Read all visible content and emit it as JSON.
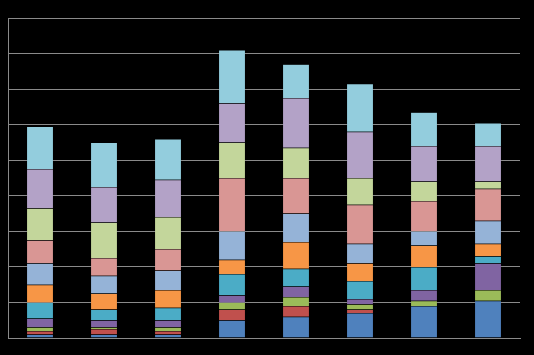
{
  "chart_data": {
    "type": "bar",
    "stacked": true,
    "grid": true,
    "tick_labels": false,
    "categories": [
      null,
      null,
      null,
      null,
      null,
      null,
      null,
      null
    ],
    "ylim": [
      0,
      90
    ],
    "yticks": [
      0,
      10,
      20,
      30,
      40,
      50,
      60,
      70,
      80,
      90
    ],
    "series": [
      {
        "color": "#4F81BD",
        "values": [
          1,
          1,
          1,
          5,
          6,
          7,
          9,
          10.5
        ]
      },
      {
        "color": "#C0504D",
        "values": [
          1,
          1.5,
          1,
          3,
          3,
          1,
          0,
          0
        ]
      },
      {
        "color": "#9BBB59",
        "values": [
          1,
          0.5,
          1,
          2,
          2.5,
          1.5,
          1.5,
          3
        ]
      },
      {
        "color": "#8064A2",
        "values": [
          2.5,
          2,
          2,
          2,
          3,
          1.5,
          3,
          7.5
        ]
      },
      {
        "color": "#4BACC6",
        "values": [
          4.5,
          3,
          3.5,
          6,
          5,
          5,
          6.5,
          2
        ]
      },
      {
        "color": "#F79646",
        "values": [
          5,
          4.5,
          5,
          4,
          7.5,
          5,
          6,
          3.5
        ]
      },
      {
        "color": "#95B3D7",
        "values": [
          6,
          5,
          5.5,
          8,
          8,
          5.5,
          4,
          6.5
        ]
      },
      {
        "color": "#D99694",
        "values": [
          6.5,
          5,
          6,
          15,
          10,
          11,
          8.5,
          9
        ]
      },
      {
        "color": "#C3D69B",
        "values": [
          9,
          10,
          9,
          10,
          8.5,
          7.5,
          5.5,
          2
        ]
      },
      {
        "color": "#B3A2C7",
        "values": [
          11,
          10,
          10.5,
          11,
          14,
          13,
          10,
          10
        ]
      },
      {
        "color": "#93CDDD",
        "values": [
          12,
          12.5,
          11.5,
          15,
          9.5,
          13.5,
          9.5,
          6.5
        ]
      }
    ]
  }
}
